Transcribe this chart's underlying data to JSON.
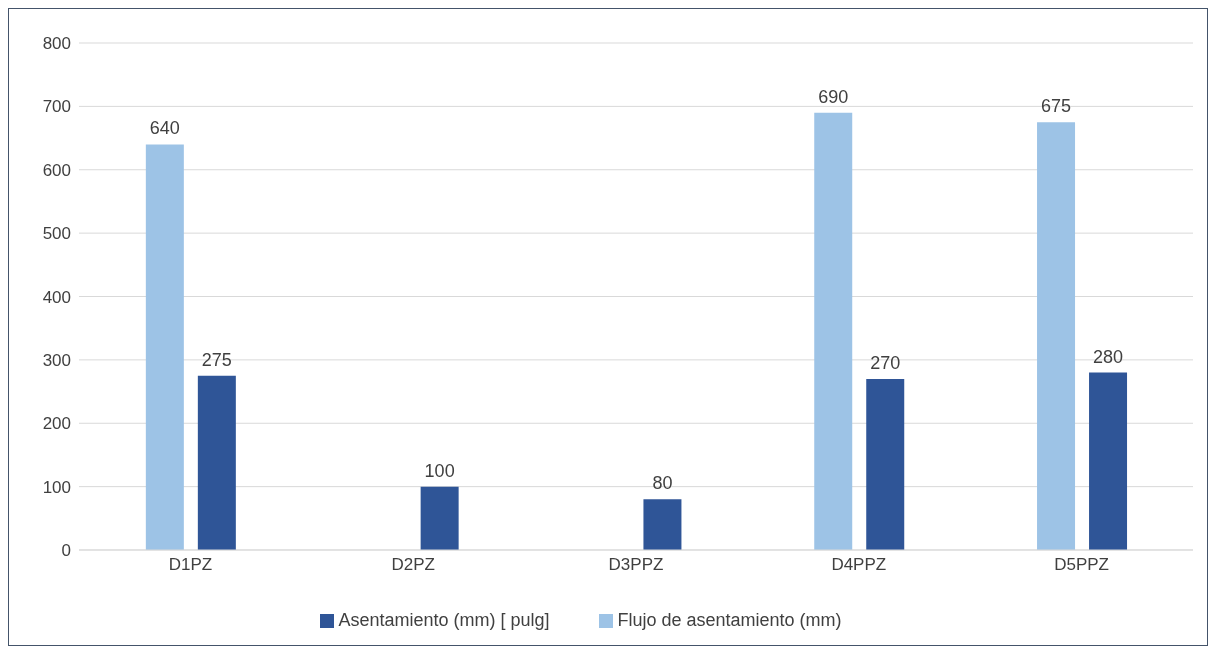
{
  "chart_data": {
    "type": "bar",
    "categories": [
      "D1PZ",
      "D2PZ",
      "D3PPZ",
      "D4PPZ",
      "D5PPZ"
    ],
    "series": [
      {
        "name": "Flujo de asentamiento (mm)",
        "color": "#9dc3e6",
        "values": [
          640,
          null,
          null,
          690,
          675
        ]
      },
      {
        "name": "Asentamiento (mm) [ pulg]",
        "color": "#2f5597",
        "values": [
          275,
          100,
          80,
          270,
          280
        ]
      }
    ],
    "ylim": [
      0,
      800
    ],
    "yticks": [
      0,
      100,
      200,
      300,
      400,
      500,
      600,
      700,
      800
    ],
    "grid": "y",
    "legend": "bottom",
    "data_labels": true
  }
}
